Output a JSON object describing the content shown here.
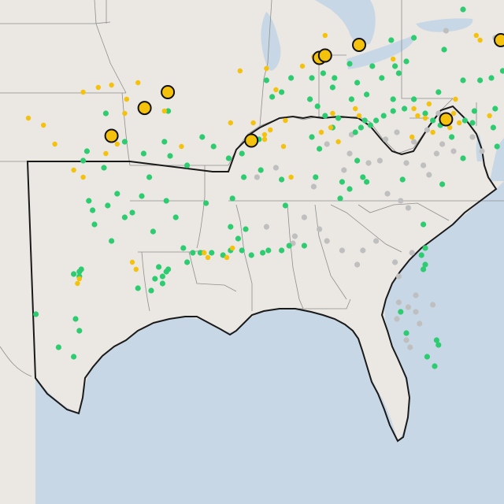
{
  "map": {
    "land_color": "#ebe7e2",
    "water_color": "#c7d7e6",
    "border_color": "#8f8f8f",
    "region_outline_color": "#1a1a1a",
    "marker_colors": {
      "green": "#2ecc71",
      "gray": "#bfbfbf",
      "yellow": "#f4c20d",
      "large_outline": "#111111"
    },
    "large_markers": [
      {
        "id": "lm1",
        "lon": -94.62,
        "lat": 37.1
      },
      {
        "id": "lm2",
        "lon": -95.85,
        "lat": 36.43
      },
      {
        "id": "lm3",
        "lon": -97.6,
        "lat": 35.25
      },
      {
        "id": "lm4",
        "lon": -90.2,
        "lat": 35.05
      },
      {
        "id": "lm5",
        "lon": -86.6,
        "lat": 38.55
      },
      {
        "id": "lm6",
        "lon": -86.3,
        "lat": 38.65
      },
      {
        "id": "lm7",
        "lon": -84.5,
        "lat": 39.1
      },
      {
        "id": "lm8",
        "lon": -79.9,
        "lat": 35.95
      },
      {
        "id": "lm9",
        "lon": -77.0,
        "lat": 39.3
      }
    ]
  }
}
